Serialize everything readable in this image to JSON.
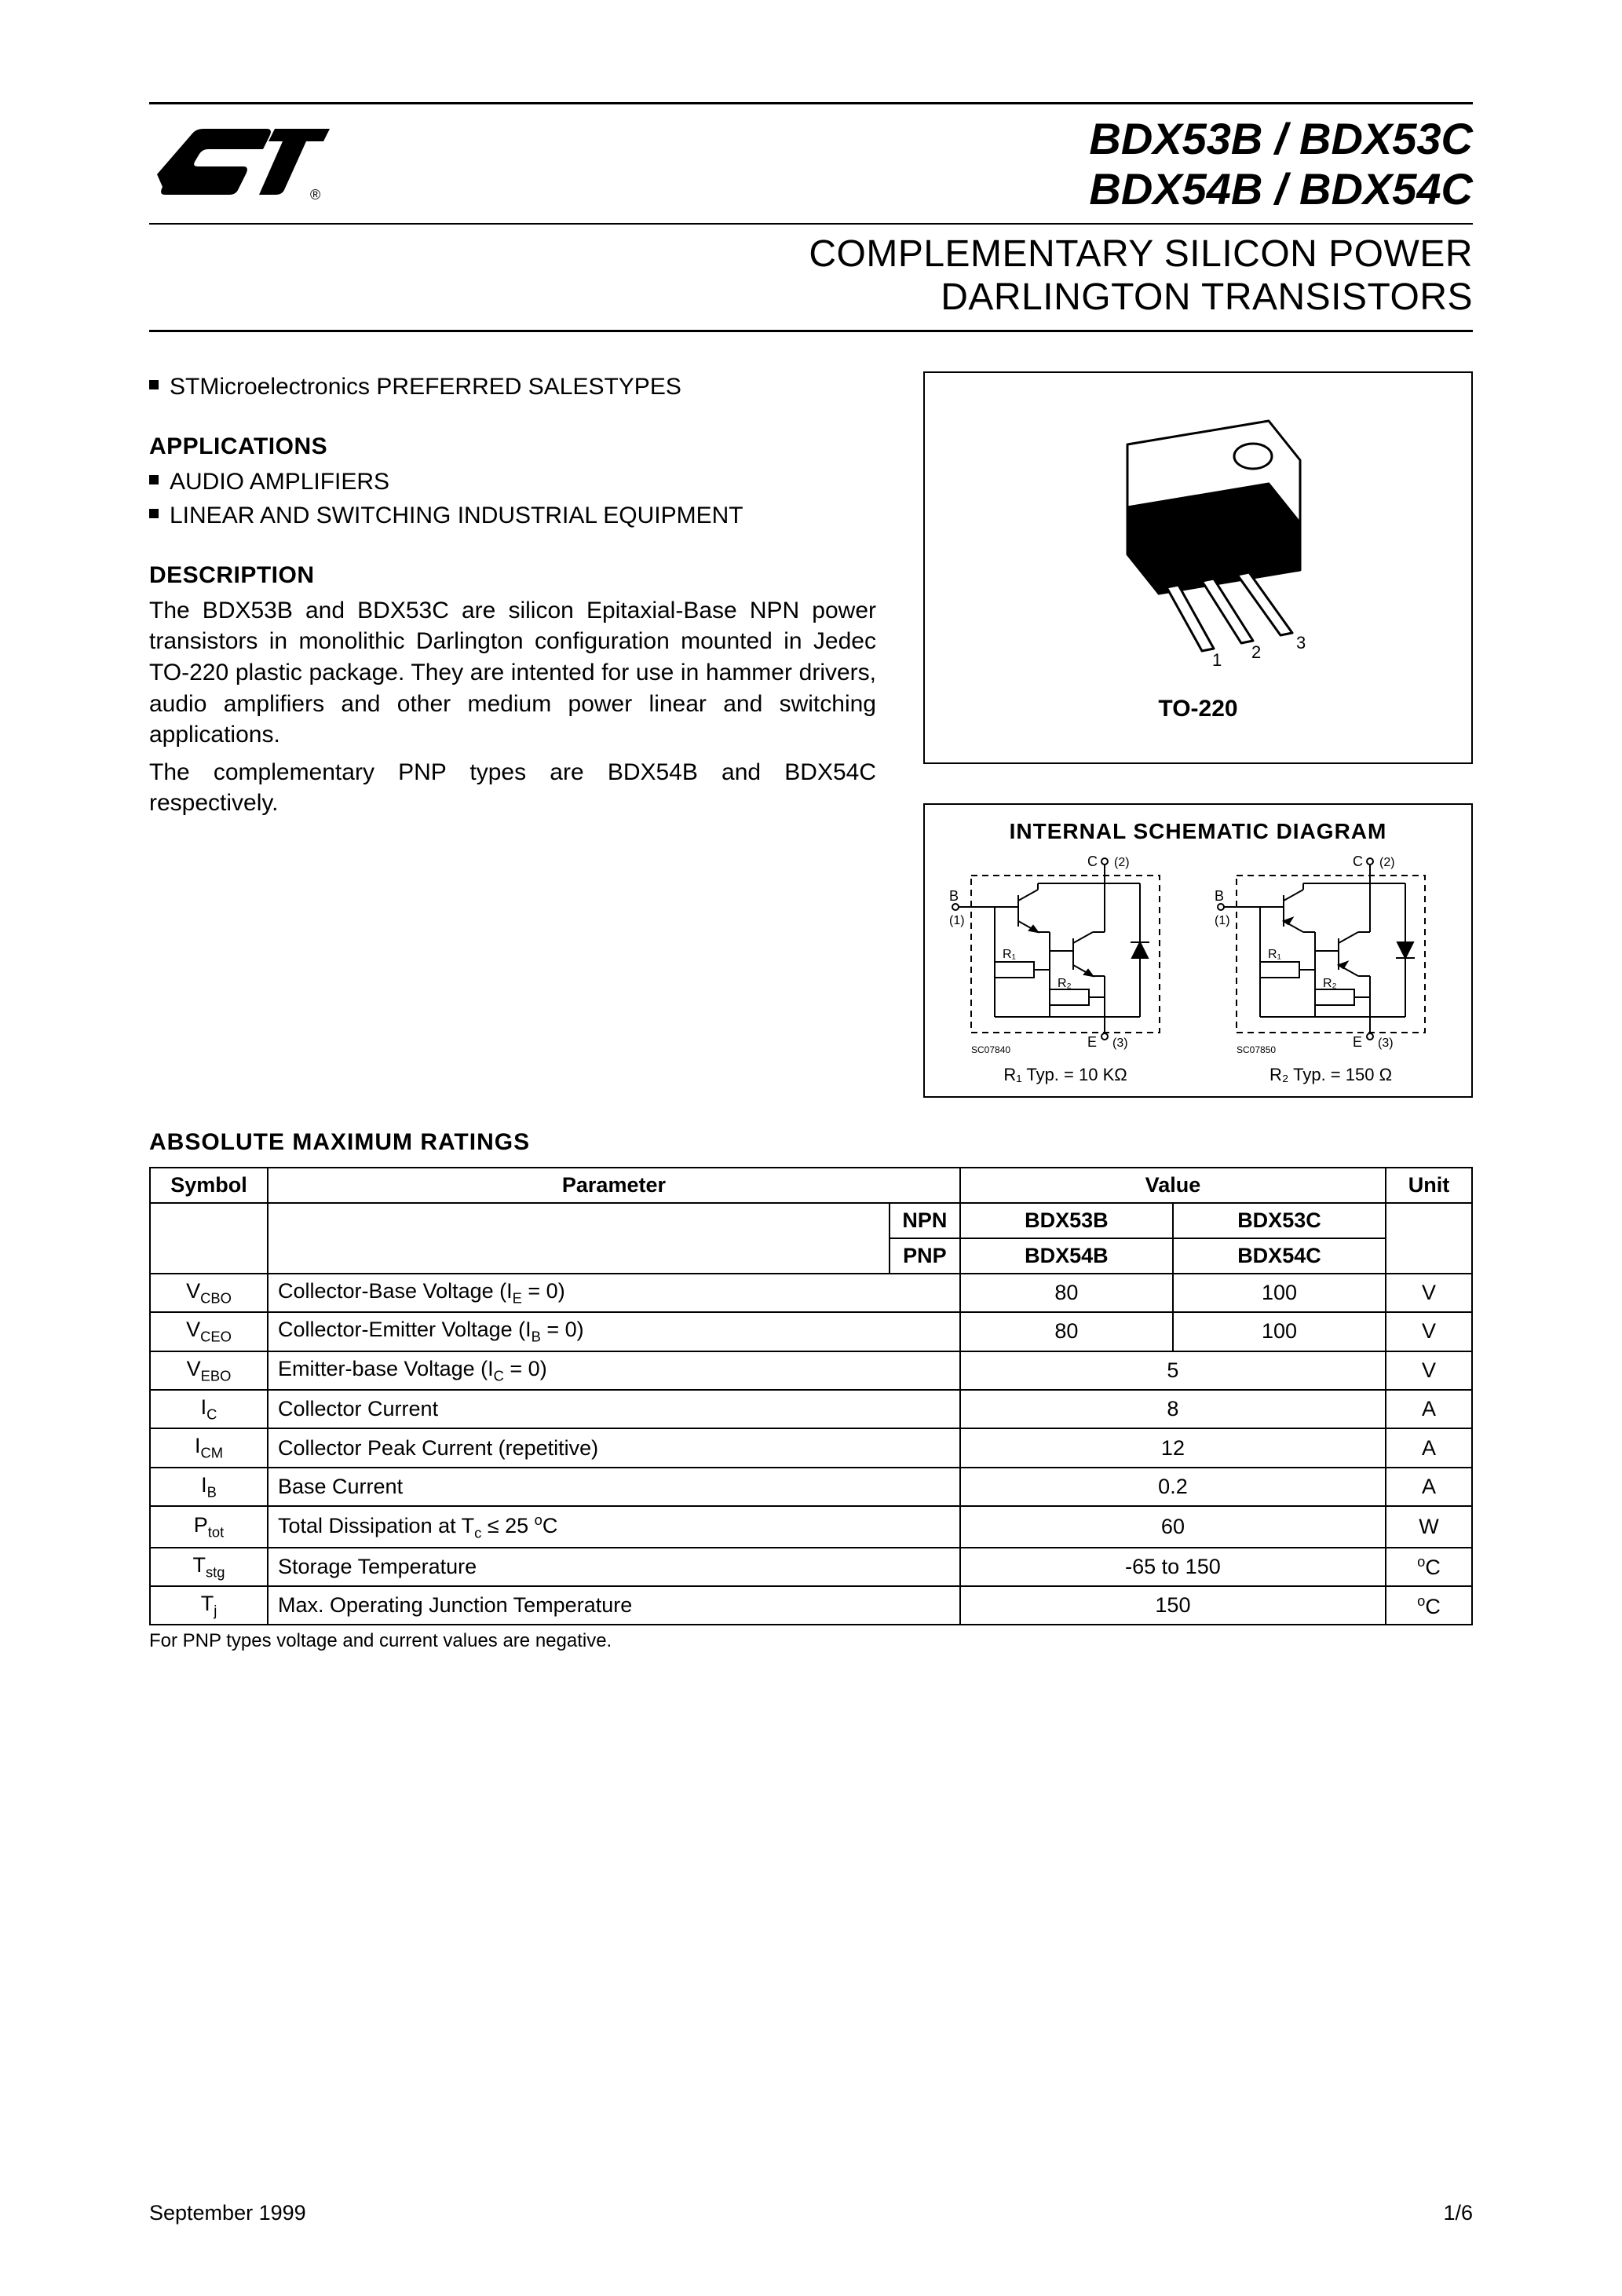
{
  "header": {
    "part_line1": "BDX53B / BDX53C",
    "part_line2": "BDX54B / BDX54C",
    "subtitle_line1": "COMPLEMENTARY SILICON POWER",
    "subtitle_line2": "DARLINGTON TRANSISTORS"
  },
  "bullets_top": [
    "STMicroelectronics PREFERRED SALESTYPES"
  ],
  "applications_h": "APPLICATIONS",
  "applications": [
    "AUDIO AMPLIFIERS",
    "LINEAR AND SWITCHING INDUSTRIAL EQUIPMENT"
  ],
  "description_h": "DESCRIPTION",
  "description_p1": "The BDX53B and BDX53C are silicon Epitaxial-Base NPN power transistors in monolithic Darlington configuration mounted in Jedec TO-220 plastic package. They are intented for use in hammer drivers, audio amplifiers and other medium power linear and switching applications.",
  "description_p2": "The complementary PNP types are BDX54B and BDX54C respectively.",
  "package_label": "TO-220",
  "schematic_title": "INTERNAL  SCHEMATIC  DIAGRAM",
  "schematic": {
    "left_id": "SC07840",
    "right_id": "SC07850",
    "r1_caption": "R₁ Typ. = 10 KΩ",
    "r2_caption": "R₂ Typ. = 150 Ω"
  },
  "ratings_h": "ABSOLUTE  MAXIMUM  RATINGS",
  "ratings_table": {
    "head": {
      "symbol": "Symbol",
      "parameter": "Parameter",
      "value": "Value",
      "unit": "Unit",
      "npn": "NPN",
      "pnp": "PNP",
      "b53": "BDX53B",
      "c53": "BDX53C",
      "b54": "BDX54B",
      "c54": "BDX54C"
    },
    "rows": [
      {
        "sym": "V<sub>CBO</sub>",
        "param": "Collector-Base Voltage (I<sub>E</sub> = 0)",
        "v1": "80",
        "v2": "100",
        "unit": "V",
        "span": false
      },
      {
        "sym": "V<sub>CEO</sub>",
        "param": "Collector-Emitter Voltage (I<sub>B</sub> = 0)",
        "v1": "80",
        "v2": "100",
        "unit": "V",
        "span": false
      },
      {
        "sym": "V<sub>EBO</sub>",
        "param": "Emitter-base Voltage (I<sub>C</sub> = 0)",
        "v": "5",
        "unit": "V",
        "span": true
      },
      {
        "sym": "I<sub>C</sub>",
        "param": "Collector Current",
        "v": "8",
        "unit": "A",
        "span": true
      },
      {
        "sym": "I<sub>CM</sub>",
        "param": "Collector Peak Current (repetitive)",
        "v": "12",
        "unit": "A",
        "span": true
      },
      {
        "sym": "I<sub>B</sub>",
        "param": "Base Current",
        "v": "0.2",
        "unit": "A",
        "span": true
      },
      {
        "sym": "P<sub>tot</sub>",
        "param": "Total Dissipation at T<sub>c</sub> ≤ 25 <sup>o</sup>C",
        "v": "60",
        "unit": "W",
        "span": true
      },
      {
        "sym": "T<sub>stg</sub>",
        "param": "Storage Temperature",
        "v": "-65 to 150",
        "unit": "<sup>o</sup>C",
        "span": true
      },
      {
        "sym": "T<sub>j</sub>",
        "param": "Max. Operating Junction Temperature",
        "v": "150",
        "unit": "<sup>o</sup>C",
        "span": true
      }
    ]
  },
  "footnote": "For PNP types voltage and current values are negative.",
  "footer_date": "September 1999",
  "footer_page": "1/6",
  "colors": {
    "text": "#000000",
    "rule": "#000000",
    "bg": "#ffffff"
  }
}
